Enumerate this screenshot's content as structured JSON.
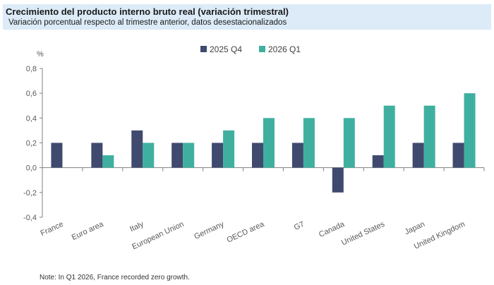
{
  "header": {
    "title": "Crecimiento del producto interno bruto real (variación trimestral)",
    "subtitle": "Variación porcentual respecto al trimestre anterior, datos desestacionalizados"
  },
  "note": "Note: In Q1 2026, France recorded zero growth.",
  "colors": {
    "header_band": "#dcebf7",
    "series_q4": "#3f4a6e",
    "series_q1": "#3fb0a0",
    "axis": "#808080"
  },
  "chart_data": {
    "type": "bar",
    "unit_label": "%",
    "categories": [
      "France",
      "Euro area",
      "Italy",
      "European Union",
      "Germany",
      "OECD area",
      "G7",
      "Canada",
      "United States",
      "Japan",
      "United Kingdom"
    ],
    "series": [
      {
        "name": "2025 Q4",
        "values": [
          0.2,
          0.2,
          0.3,
          0.2,
          0.2,
          0.2,
          0.2,
          -0.2,
          0.1,
          0.2,
          0.2
        ]
      },
      {
        "name": "2026 Q1",
        "values": [
          0.0,
          0.1,
          0.2,
          0.2,
          0.3,
          0.4,
          0.4,
          0.4,
          0.5,
          0.5,
          0.6
        ]
      }
    ],
    "ylim": [
      -0.4,
      0.8
    ],
    "yticks": [
      -0.4,
      -0.2,
      0.0,
      0.2,
      0.4,
      0.6,
      0.8
    ],
    "ytick_labels": [
      "-0,4",
      "-0,2",
      "0,0",
      "0,2",
      "0,4",
      "0,6",
      "0,8"
    ],
    "grid": false,
    "legend_position": "top-center"
  }
}
